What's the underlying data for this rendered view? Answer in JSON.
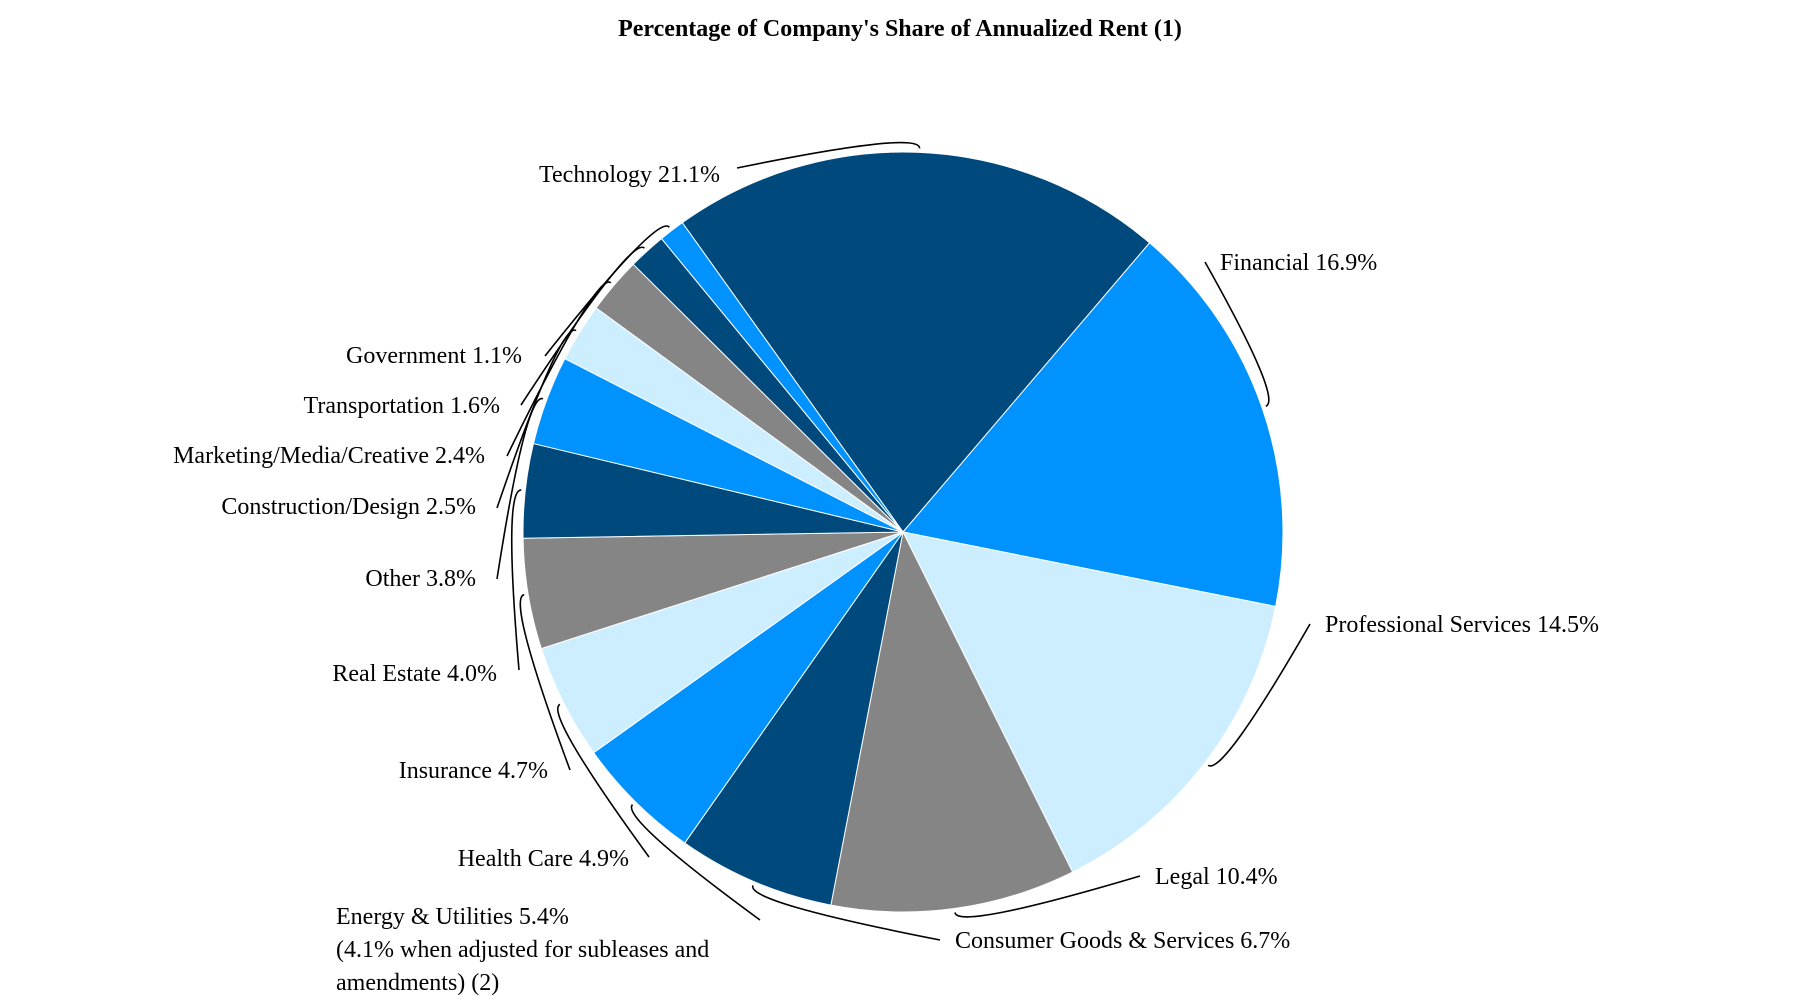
{
  "chart_data": {
    "type": "pie",
    "title": "Percentage of Company's Share of Annualized Rent (1)",
    "start_label": "Technology",
    "direction": "clockwise",
    "slices": [
      {
        "label": "Technology",
        "value": 21.1,
        "color": "#00497d",
        "text": [
          "Technology 21.1%"
        ]
      },
      {
        "label": "Financial",
        "value": 16.9,
        "color": "#0093ff",
        "text": [
          "Financial 16.9%"
        ]
      },
      {
        "label": "Professional Services",
        "value": 14.5,
        "color": "#cdeefe",
        "text": [
          "Professional Services 14.5%"
        ]
      },
      {
        "label": "Legal",
        "value": 10.4,
        "color": "#858585",
        "text": [
          "Legal 10.4%"
        ]
      },
      {
        "label": "Consumer Goods & Services",
        "value": 6.7,
        "color": "#00497d",
        "text": [
          "Consumer Goods & Services 6.7%"
        ]
      },
      {
        "label": "Energy & Utilities",
        "value": 5.4,
        "color": "#0093ff",
        "text": [
          "Energy & Utilities 5.4%",
          "(4.1% when adjusted for subleases and",
          "amendments) (2)"
        ]
      },
      {
        "label": "Health Care",
        "value": 4.9,
        "color": "#cdeefe",
        "text": [
          "Health Care 4.9%"
        ]
      },
      {
        "label": "Insurance",
        "value": 4.7,
        "color": "#858585",
        "text": [
          "Insurance 4.7%"
        ]
      },
      {
        "label": "Real Estate",
        "value": 4.0,
        "color": "#00497d",
        "text": [
          "Real Estate 4.0%"
        ]
      },
      {
        "label": "Other",
        "value": 3.8,
        "color": "#0093ff",
        "text": [
          "Other 3.8%"
        ]
      },
      {
        "label": "Construction/Design",
        "value": 2.5,
        "color": "#cdeefe",
        "text": [
          "Construction/Design 2.5%"
        ]
      },
      {
        "label": "Marketing/Media/Creative",
        "value": 2.4,
        "color": "#858585",
        "text": [
          "Marketing/Media/Creative 2.4%"
        ]
      },
      {
        "label": "Transportation",
        "value": 1.6,
        "color": "#00497d",
        "text": [
          "Transportation 1.6%"
        ]
      },
      {
        "label": "Government",
        "value": 1.1,
        "color": "#0093ff",
        "text": [
          "Government 1.1%"
        ]
      }
    ]
  }
}
